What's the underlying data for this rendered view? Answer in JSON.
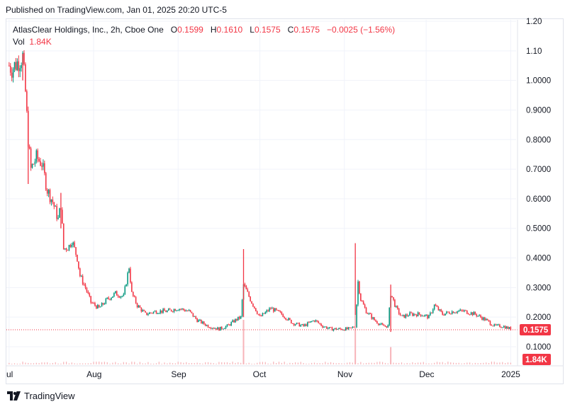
{
  "header": {
    "published": "Published on TradingView.com, Jan 01, 2025 20:20 UTC-5"
  },
  "legend": {
    "title": "AtlasClear Holdings, Inc., 2h, Cboe One",
    "o_label": "O",
    "o_value": "0.1599",
    "h_label": "H",
    "h_value": "0.1610",
    "l_label": "L",
    "l_value": "0.1575",
    "c_label": "C",
    "c_value": "0.1575",
    "change": "−0.0025 (−1.56%)",
    "vol_label": "Vol",
    "vol_value": "1.84K"
  },
  "footer": {
    "brand": "TradingView"
  },
  "colors": {
    "up": "#089981",
    "down": "#f23645",
    "grid": "#f0f3fa",
    "frame": "#e0e3eb",
    "volume": "#f7b4b9"
  },
  "chart_data": {
    "type": "candlestick",
    "symbol": "AtlasClear Holdings, Inc.",
    "interval": "2h",
    "exchange": "Cboe One",
    "ylim": [
      0.02,
      1.2
    ],
    "y_ticks": [
      "1.20",
      "1.10",
      "1.0000",
      "0.9000",
      "0.8000",
      "0.7000",
      "0.6000",
      "0.5000",
      "0.4000",
      "0.3000",
      "0.2000",
      "0.1000"
    ],
    "y_tick_values": [
      1.2,
      1.1,
      1.0,
      0.9,
      0.8,
      0.7,
      0.6,
      0.5,
      0.4,
      0.3,
      0.2,
      0.1
    ],
    "x_ticks": [
      "ul",
      "Aug",
      "Sep",
      "Oct",
      "Nov",
      "Dec",
      "2025"
    ],
    "x_tick_dates": [
      "2024-07-01",
      "2024-08-01",
      "2024-09-01",
      "2024-10-01",
      "2024-11-01",
      "2024-12-01",
      "2025-01-01"
    ],
    "x_range": [
      "2024-06-30",
      "2025-01-03"
    ],
    "last_price": 0.1575,
    "last_price_label": "0.1575",
    "last_volume_label": "1.84K",
    "price_anchors": [
      [
        "2024-07-01",
        1.05
      ],
      [
        "2024-07-02",
        1.04
      ],
      [
        "2024-07-04",
        1.06
      ],
      [
        "2024-07-06",
        1.08
      ],
      [
        "2024-07-07",
        0.96
      ],
      [
        "2024-07-08",
        0.8
      ],
      [
        "2024-07-09",
        0.7
      ],
      [
        "2024-07-11",
        0.74
      ],
      [
        "2024-07-13",
        0.72
      ],
      [
        "2024-07-15",
        0.63
      ],
      [
        "2024-07-17",
        0.59
      ],
      [
        "2024-07-19",
        0.53
      ],
      [
        "2024-07-20",
        0.58
      ],
      [
        "2024-07-21",
        0.43
      ],
      [
        "2024-07-23",
        0.44
      ],
      [
        "2024-07-24",
        0.46
      ],
      [
        "2024-07-26",
        0.4
      ],
      [
        "2024-07-27",
        0.34
      ],
      [
        "2024-07-29",
        0.3
      ],
      [
        "2024-07-31",
        0.25
      ],
      [
        "2024-08-03",
        0.23
      ],
      [
        "2024-08-06",
        0.26
      ],
      [
        "2024-08-09",
        0.28
      ],
      [
        "2024-08-12",
        0.27
      ],
      [
        "2024-08-14",
        0.37
      ],
      [
        "2024-08-15",
        0.28
      ],
      [
        "2024-08-17",
        0.24
      ],
      [
        "2024-08-20",
        0.21
      ],
      [
        "2024-08-24",
        0.22
      ],
      [
        "2024-08-28",
        0.22
      ],
      [
        "2024-09-01",
        0.23
      ],
      [
        "2024-09-05",
        0.22
      ],
      [
        "2024-09-08",
        0.19
      ],
      [
        "2024-09-12",
        0.17
      ],
      [
        "2024-09-16",
        0.16
      ],
      [
        "2024-09-19",
        0.17
      ],
      [
        "2024-09-22",
        0.19
      ],
      [
        "2024-09-24",
        0.2
      ],
      [
        "2024-09-25",
        0.31
      ],
      [
        "2024-09-28",
        0.25
      ],
      [
        "2024-10-01",
        0.2
      ],
      [
        "2024-10-05",
        0.23
      ],
      [
        "2024-10-09",
        0.21
      ],
      [
        "2024-10-13",
        0.18
      ],
      [
        "2024-10-17",
        0.17
      ],
      [
        "2024-10-21",
        0.19
      ],
      [
        "2024-10-24",
        0.17
      ],
      [
        "2024-10-27",
        0.16
      ],
      [
        "2024-10-30",
        0.16
      ],
      [
        "2024-11-03",
        0.16
      ],
      [
        "2024-11-05",
        0.17
      ],
      [
        "2024-11-06",
        0.32
      ],
      [
        "2024-11-07",
        0.26
      ],
      [
        "2024-11-09",
        0.22
      ],
      [
        "2024-11-12",
        0.19
      ],
      [
        "2024-11-15",
        0.17
      ],
      [
        "2024-11-17",
        0.17
      ],
      [
        "2024-11-18",
        0.28
      ],
      [
        "2024-11-20",
        0.23
      ],
      [
        "2024-11-22",
        0.2
      ],
      [
        "2024-11-25",
        0.21
      ],
      [
        "2024-11-29",
        0.21
      ],
      [
        "2024-12-02",
        0.2
      ],
      [
        "2024-12-04",
        0.24
      ],
      [
        "2024-12-07",
        0.21
      ],
      [
        "2024-12-11",
        0.22
      ],
      [
        "2024-12-15",
        0.22
      ],
      [
        "2024-12-19",
        0.21
      ],
      [
        "2024-12-23",
        0.19
      ],
      [
        "2024-12-26",
        0.17
      ],
      [
        "2024-12-29",
        0.17
      ],
      [
        "2025-01-01",
        0.16
      ]
    ],
    "spikes": [
      {
        "date": "2024-09-25",
        "high": 0.43,
        "low": 0.2
      },
      {
        "date": "2024-11-05",
        "high": 0.45,
        "low": 0.16
      },
      {
        "date": "2024-11-18",
        "high": 0.31,
        "low": 0.15
      },
      {
        "date": "2024-07-06",
        "high": 1.09,
        "low": 1.0
      },
      {
        "date": "2024-07-08",
        "high": 0.82,
        "low": 0.65
      },
      {
        "date": "2024-07-20",
        "high": 0.62,
        "low": 0.5
      }
    ],
    "volume_spikes": [
      {
        "date": "2024-09-25",
        "value": 0.9
      },
      {
        "date": "2024-11-05",
        "value": 1.0
      },
      {
        "date": "2024-11-18",
        "value": 0.35
      }
    ]
  }
}
